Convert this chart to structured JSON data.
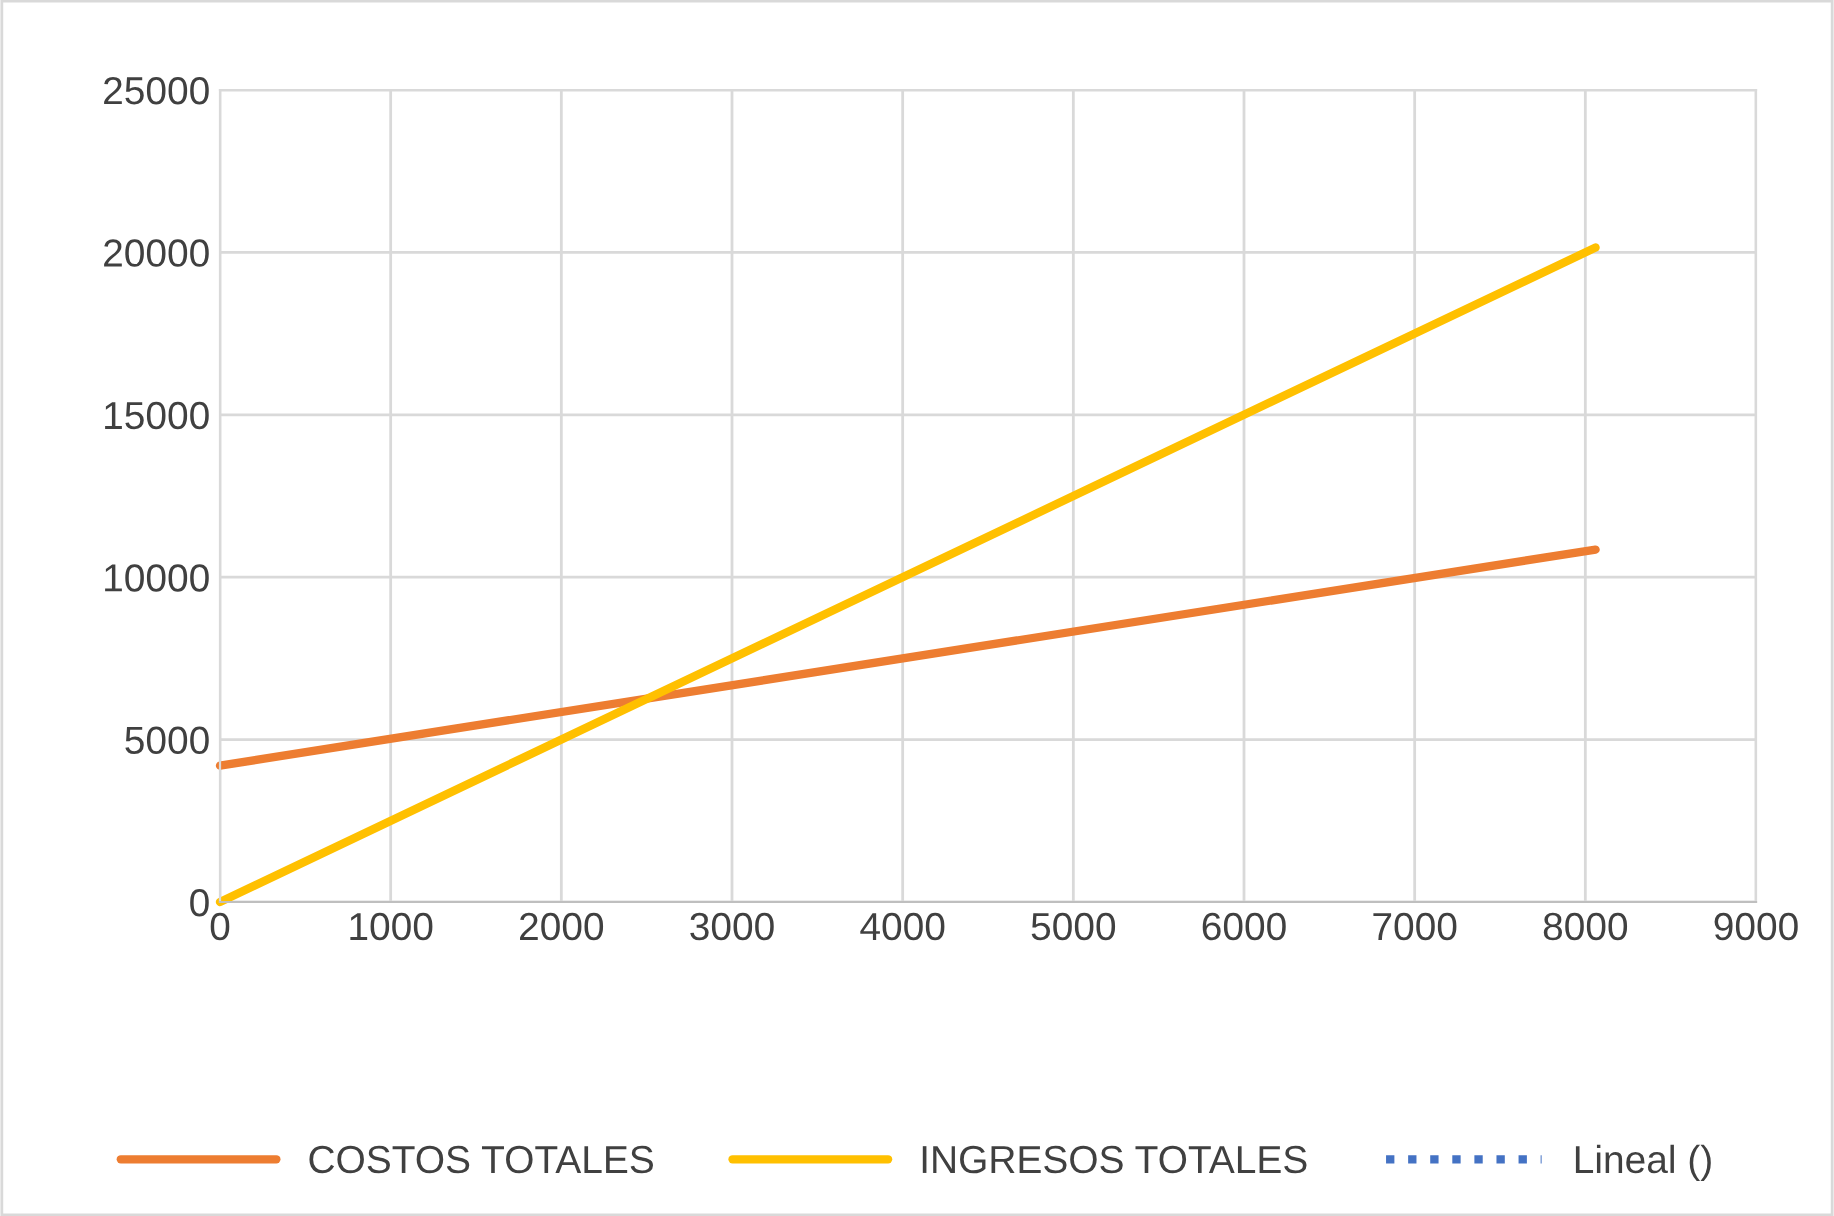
{
  "chart_data": {
    "type": "line",
    "x": [
      0,
      8060
    ],
    "xlim": [
      0,
      9000
    ],
    "xticks": [
      0,
      1000,
      2000,
      3000,
      4000,
      5000,
      6000,
      7000,
      8000,
      9000
    ],
    "ylim": [
      0,
      25000
    ],
    "yticks": [
      0,
      5000,
      10000,
      15000,
      20000,
      25000
    ],
    "grid": true,
    "legend": "bottom",
    "marker": "none",
    "series": [
      {
        "name": "COSTOS TOTALES",
        "color": "#ed7d31",
        "values": [
          4200,
          10850
        ]
      },
      {
        "name": "INGRESOS TOTALES",
        "color": "#ffc000",
        "values": [
          0,
          20150
        ]
      },
      {
        "name": "Lineal ()",
        "color": "#4472c4",
        "line_style": "dotted",
        "values": [
          null,
          null
        ]
      }
    ]
  }
}
